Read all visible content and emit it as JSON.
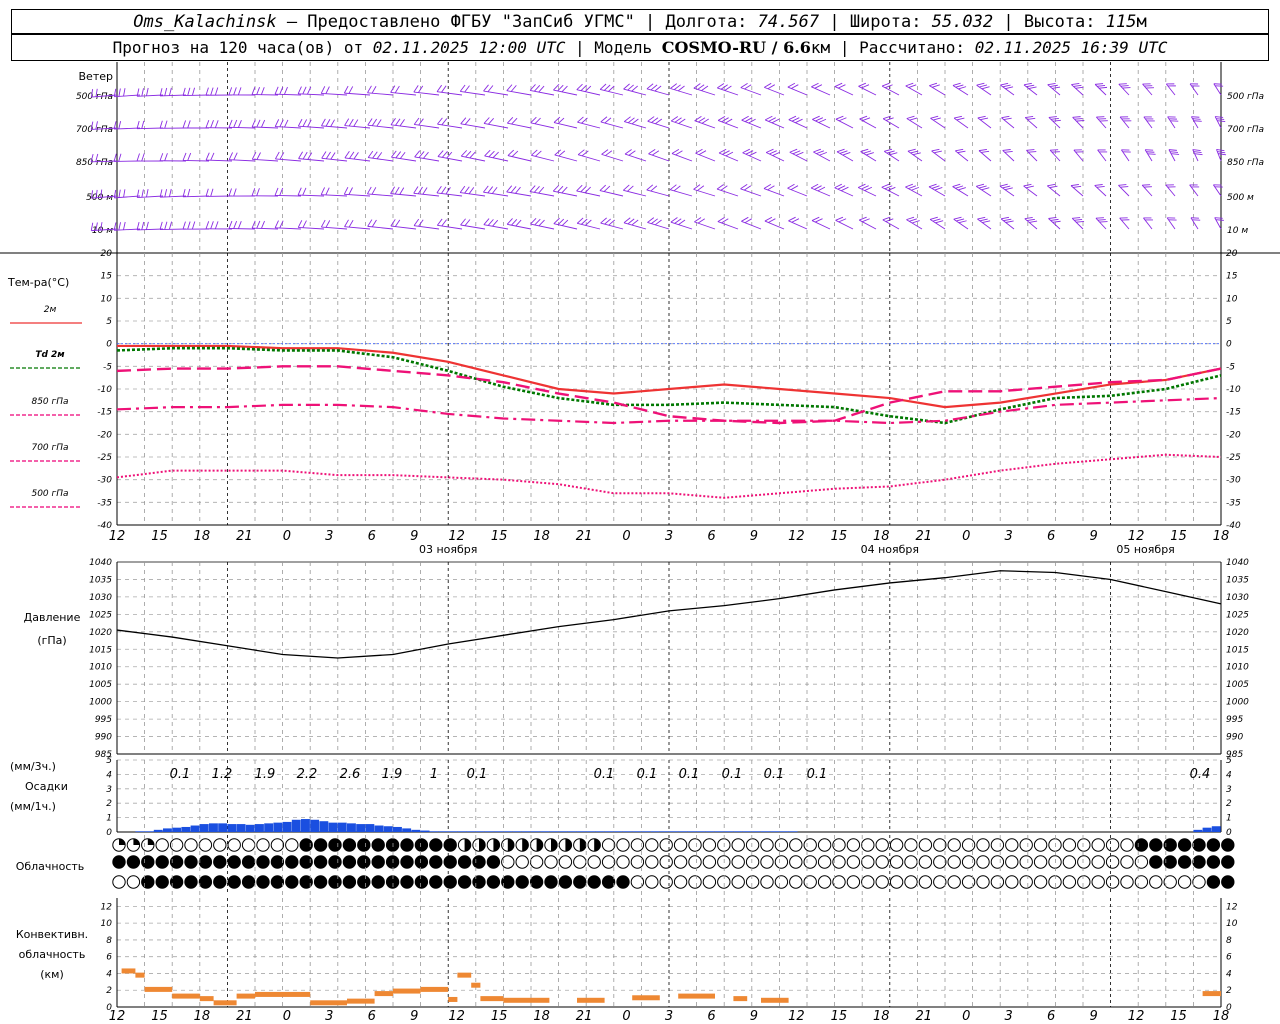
{
  "header": {
    "station": "Oms_Kalachinsk",
    "provider": "— Предоставлено ФГБУ \"ЗапСиб УГМС\" |",
    "lon_label": "Долгота:",
    "lon": "74.567",
    "lat_label": "| Широта:",
    "lat": "55.032",
    "alt_label": "| Высота:",
    "alt": "115",
    "alt_unit": "м",
    "forecast_prefix": "Прогноз на 120 часа(ов) от",
    "forecast_start": "02.11.2025 12:00 UTC",
    "model_label": "| Модель",
    "model": "COSMO-RU / 6.6",
    "model_unit": "км",
    "calc_label": "| Рассчитано:",
    "calc_time": "02.11.2025 16:39 UTC"
  },
  "wind": {
    "title": "Ветер",
    "levels": [
      "500 гПа",
      "700 гПа",
      "850 гПа",
      "500 м",
      "10  м"
    ]
  },
  "temp_panel": {
    "title": "Тем-ра(°С)",
    "yticks": [
      20,
      15,
      10,
      5,
      0,
      -5,
      -10,
      -15,
      -20,
      -25,
      -30,
      -35,
      -40
    ],
    "legend": [
      {
        "label": "2м",
        "color": "#ee3333"
      },
      {
        "label": "Td  2м",
        "color": "#007700"
      },
      {
        "label": "850 гПа",
        "color": "#ee0077"
      },
      {
        "label": "700 гПа",
        "color": "#ee0077"
      },
      {
        "label": "500 гПа",
        "color": "#ee0077"
      }
    ]
  },
  "x_axis": {
    "hours": [
      "12",
      "15",
      "18",
      "21",
      "0",
      "3",
      "6",
      "9",
      "12",
      "15",
      "18",
      "21",
      "0",
      "3",
      "6",
      "9",
      "12",
      "15",
      "18",
      "21",
      "0",
      "3",
      "6",
      "9",
      "12",
      "15",
      "18"
    ],
    "dates": [
      "03 ноября",
      "04 ноября",
      "05 ноября"
    ]
  },
  "pressure_panel": {
    "title1": "Давление",
    "title2": "(гПа)",
    "yticks": [
      1040,
      1035,
      1030,
      1025,
      1020,
      1015,
      1010,
      1005,
      1000,
      995,
      990,
      985
    ]
  },
  "precip_panel": {
    "label1": "(мм/3ч.)",
    "label2": "Осадки",
    "label3": "(мм/1ч.)",
    "yticks": [
      5,
      4,
      3,
      2,
      1,
      0
    ],
    "totals_3h": [
      "0.1",
      "1.2",
      "1.9",
      "2.2",
      "2.6",
      "1.9",
      "1",
      "0.1",
      "0.1",
      "0.1",
      "0.1",
      "0.1",
      "0.1",
      "0.1",
      "0.4"
    ],
    "color": "#1a4fe0"
  },
  "cloud_panel": {
    "title": "Облачность"
  },
  "conv_panel": {
    "title1": "Конвективн.",
    "title2": "облачность",
    "title3": "(км)",
    "yticks": [
      12,
      10,
      8,
      6,
      4,
      2,
      0
    ],
    "color": "#ee8833"
  },
  "chart_data": [
    {
      "type": "line",
      "title": "Тем-ра(°С)",
      "x_hours_from_start": [
        0,
        6,
        12,
        18,
        24,
        30,
        36,
        42,
        48,
        54,
        60,
        66,
        72,
        78,
        84,
        90,
        96,
        102,
        108,
        114,
        120
      ],
      "ylim": [
        -40,
        20
      ],
      "series": [
        {
          "name": "2м",
          "values": [
            -0.5,
            -0.5,
            -0.5,
            -1,
            -1,
            -2,
            -4,
            -7,
            -10,
            -11,
            -10,
            -9,
            -10,
            -11,
            -12,
            -14,
            -13,
            -11,
            -9,
            -8,
            -5.5
          ]
        },
        {
          "name": "Td  2м",
          "values": [
            -1.5,
            -1,
            -1,
            -1.5,
            -1.5,
            -3,
            -6,
            -9.5,
            -12,
            -13.5,
            -13.5,
            -13,
            -13.5,
            -14,
            -16,
            -17.5,
            -14.5,
            -12,
            -11.5,
            -10,
            -7
          ]
        },
        {
          "name": "850 гПа",
          "values": [
            -6,
            -5.5,
            -5.5,
            -5,
            -5,
            -6,
            -7,
            -8.5,
            -11,
            -13,
            -16,
            -17,
            -17.5,
            -17,
            -13,
            -10.5,
            -10.5,
            -9.5,
            -8.5,
            -8,
            -5.5
          ]
        },
        {
          "name": "700 гПа",
          "values": [
            -14.5,
            -14,
            -14,
            -13.5,
            -13.5,
            -14,
            -15.5,
            -16.5,
            -17,
            -17.5,
            -17,
            -17,
            -17,
            -17,
            -17.5,
            -17,
            -15,
            -13.5,
            -13,
            -12.5,
            -12
          ]
        },
        {
          "name": "500 гПа",
          "values": [
            -29.5,
            -28,
            -28,
            -28,
            -29,
            -29,
            -29.5,
            -30,
            -31,
            -33,
            -33,
            -34,
            -33,
            -32,
            -31.5,
            -30,
            -28,
            -26.5,
            -25.5,
            -24.5,
            -25
          ]
        }
      ]
    },
    {
      "type": "line",
      "title": "Давление",
      "x_hours_from_start": [
        0,
        6,
        12,
        18,
        24,
        30,
        36,
        42,
        48,
        54,
        60,
        66,
        72,
        78,
        84,
        90,
        96,
        102,
        108,
        114,
        120
      ],
      "ylim": [
        985,
        1040
      ],
      "series": [
        {
          "name": "Давление",
          "values": [
            1020.5,
            1018.5,
            1016,
            1013.5,
            1012.5,
            1013.5,
            1016.5,
            1019,
            1021.5,
            1023.5,
            1026,
            1027.5,
            1029.5,
            1032,
            1034,
            1035.5,
            1037.5,
            1037,
            1035,
            1031.5,
            1028
          ]
        }
      ]
    },
    {
      "type": "bar",
      "title": "Осадки",
      "ylim": [
        0,
        5
      ],
      "x_hours_from_start": [
        3,
        4,
        5,
        6,
        7,
        8,
        9,
        10,
        11,
        12,
        13,
        14,
        15,
        16,
        17,
        18,
        19,
        20,
        21,
        22,
        23,
        24,
        25,
        26,
        27,
        28,
        29,
        30,
        31,
        32,
        33,
        34,
        35,
        36,
        37,
        38,
        39,
        40,
        41,
        42,
        43,
        44,
        45,
        46,
        47,
        48,
        49,
        50,
        51,
        52,
        53,
        54,
        55,
        56,
        57,
        58,
        59,
        60,
        61,
        62,
        63,
        64,
        65,
        66,
        67,
        68,
        69,
        70,
        71,
        72,
        73,
        74,
        118,
        119,
        120
      ],
      "values": [
        0.05,
        0.05,
        0.15,
        0.25,
        0.3,
        0.35,
        0.45,
        0.55,
        0.6,
        0.6,
        0.55,
        0.55,
        0.5,
        0.55,
        0.6,
        0.65,
        0.7,
        0.85,
        0.9,
        0.85,
        0.75,
        0.65,
        0.65,
        0.6,
        0.55,
        0.55,
        0.45,
        0.4,
        0.35,
        0.25,
        0.15,
        0.1,
        0.05,
        0.05,
        0.05,
        0.05,
        0.05,
        0.05,
        0.05,
        0.05,
        0.05,
        0.05,
        0.05,
        0.05,
        0.05,
        0.05,
        0.05,
        0.05,
        0.05,
        0.05,
        0.05,
        0.05,
        0.05,
        0.05,
        0.05,
        0.05,
        0.05,
        0.05,
        0.05,
        0.05,
        0.05,
        0.05,
        0.05,
        0.05,
        0.05,
        0.05,
        0.05,
        0.05,
        0.05,
        0.05,
        0.05,
        0.05,
        0.15,
        0.3,
        0.4
      ]
    },
    {
      "type": "bar",
      "title": "Конвективн. облачность",
      "ylim": [
        0,
        13
      ],
      "segments_hours_km": [
        [
          0.5,
          2,
          4.3
        ],
        [
          2,
          3,
          3.8
        ],
        [
          3,
          6,
          2.1
        ],
        [
          6,
          9,
          1.3
        ],
        [
          9,
          10.5,
          1
        ],
        [
          10.5,
          13,
          0.5
        ],
        [
          13,
          15,
          1.3
        ],
        [
          15,
          21,
          1.5
        ],
        [
          21,
          25,
          0.5
        ],
        [
          25,
          28,
          0.7
        ],
        [
          28,
          30,
          1.6
        ],
        [
          30,
          33,
          1.9
        ],
        [
          33,
          36,
          2.1
        ],
        [
          36,
          37,
          0.9
        ],
        [
          37,
          38.5,
          3.8
        ],
        [
          38.5,
          39.5,
          2.6
        ],
        [
          39.5,
          42,
          1
        ],
        [
          42,
          47,
          0.8
        ],
        [
          50,
          53,
          0.8
        ],
        [
          56,
          59,
          1.1
        ],
        [
          61,
          65,
          1.3
        ],
        [
          67,
          68.5,
          1
        ],
        [
          70,
          73,
          0.8
        ],
        [
          118,
          120,
          1.6
        ]
      ]
    }
  ]
}
